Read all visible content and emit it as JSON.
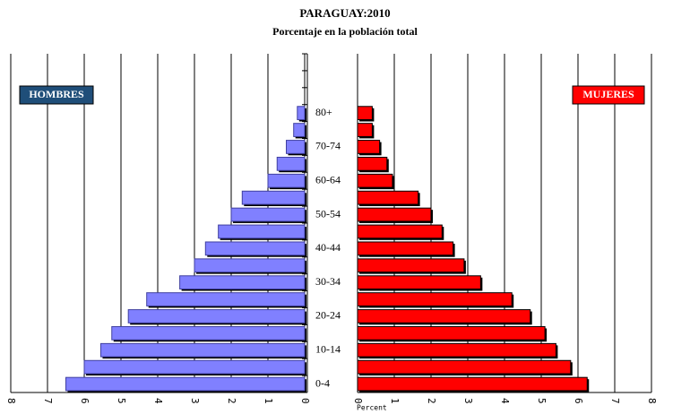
{
  "chart_data": {
    "type": "pyramid",
    "title": "PARAGUAY:2010",
    "subtitle": "Porcentaje en la población total",
    "x_label": "Percent",
    "categories": [
      "0-4",
      null,
      "10-14",
      null,
      "20-24",
      null,
      "30-34",
      null,
      "40-44",
      null,
      "50-54",
      null,
      "60-64",
      null,
      "70-74",
      null,
      "80+"
    ],
    "series": [
      {
        "name": "HOMBRES",
        "color": "#8080ff",
        "values": [
          6.5,
          6.0,
          5.55,
          5.25,
          4.8,
          4.3,
          3.4,
          3.0,
          2.7,
          2.35,
          2.0,
          1.7,
          1.0,
          0.75,
          0.5,
          0.3,
          0.2
        ]
      },
      {
        "name": "MUJERES",
        "color": "#ff0000",
        "values": [
          6.25,
          5.8,
          5.4,
          5.1,
          4.7,
          4.2,
          3.35,
          2.9,
          2.6,
          2.3,
          2.0,
          1.65,
          0.95,
          0.8,
          0.6,
          0.4,
          0.4
        ]
      }
    ],
    "xlim": [
      0,
      8
    ],
    "xticks": [
      0,
      1,
      2,
      3,
      4,
      5,
      6,
      7,
      8
    ],
    "grid": true
  }
}
